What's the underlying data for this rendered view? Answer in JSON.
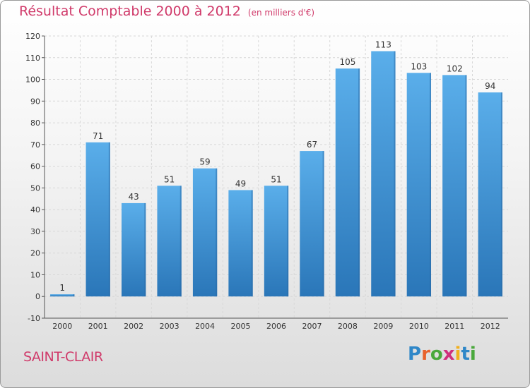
{
  "header": {
    "title": "Résultat Comptable 2000 à 2012",
    "subtitle": "(en milliers d'€)"
  },
  "footer": {
    "location": "SAINT-CLAIR",
    "brand": "Proxiti",
    "brand_letters": [
      {
        "char": "P",
        "color": "#2f87c8"
      },
      {
        "char": "r",
        "color": "#e8612c"
      },
      {
        "char": "o",
        "color": "#4aa83c"
      },
      {
        "char": "x",
        "color": "#d0307c"
      },
      {
        "char": "i",
        "color": "#f2b01d"
      },
      {
        "char": "t",
        "color": "#2f87c8"
      },
      {
        "char": "i",
        "color": "#4aa83c"
      }
    ]
  },
  "chart_data": {
    "type": "bar",
    "categories": [
      "2000",
      "2001",
      "2002",
      "2003",
      "2004",
      "2005",
      "2006",
      "2007",
      "2008",
      "2009",
      "2010",
      "2011",
      "2012"
    ],
    "values": [
      1,
      71,
      43,
      51,
      59,
      49,
      51,
      67,
      105,
      113,
      103,
      102,
      94
    ],
    "data_labels": [
      "1",
      "71",
      "43",
      "51",
      "59",
      "49",
      "51",
      "67",
      "105",
      "113",
      "103",
      "102",
      "94"
    ],
    "yticks": [
      "-10",
      "0",
      "10",
      "20",
      "30",
      "40",
      "50",
      "60",
      "70",
      "80",
      "90",
      "100",
      "110",
      "120"
    ],
    "ylim": [
      -10,
      120
    ],
    "grid": true,
    "bar_color": "#3d8fd6",
    "grid_color": "#d8d8d8"
  }
}
